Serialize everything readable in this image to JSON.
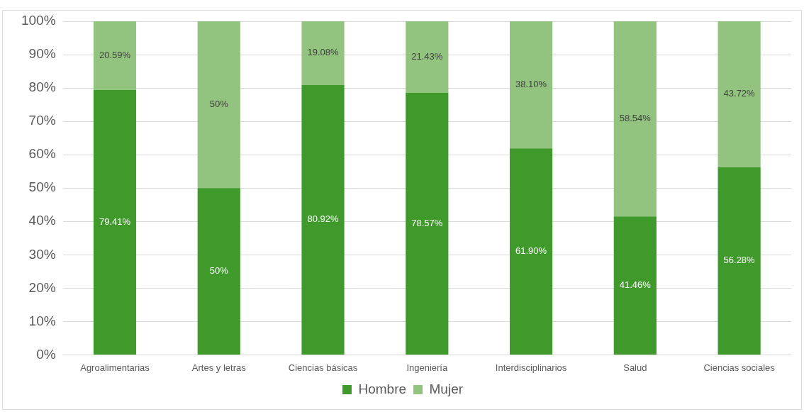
{
  "chart_data": {
    "type": "bar",
    "stacked": true,
    "categories": [
      "Agroalimentarias",
      "Artes y letras",
      "Ciencias básicas",
      "Ingeniería",
      "Interdisciplinarios",
      "Salud",
      "Ciencias sociales"
    ],
    "series": [
      {
        "name": "Hombre",
        "color": "#3f9a2b",
        "values": [
          79.41,
          50,
          80.92,
          78.57,
          61.9,
          41.46,
          56.28
        ],
        "value_labels": [
          "79.41%",
          "50%",
          "80.92%",
          "78.57%",
          "61.90%",
          "41.46%",
          "56.28%"
        ]
      },
      {
        "name": "Mujer",
        "color": "#93c47f",
        "values": [
          20.59,
          50,
          19.08,
          21.43,
          38.1,
          58.54,
          43.72
        ],
        "value_labels": [
          "20.59%",
          "50%",
          "19.08%",
          "21.43%",
          "38.10%",
          "58.54%",
          "43.72%"
        ]
      }
    ],
    "ylim": [
      0,
      100
    ],
    "yticks": [
      {
        "value": 0,
        "label": "0%"
      },
      {
        "value": 10,
        "label": "10%"
      },
      {
        "value": 20,
        "label": "20%"
      },
      {
        "value": 30,
        "label": "30%"
      },
      {
        "value": 40,
        "label": "40%"
      },
      {
        "value": 50,
        "label": "50%"
      },
      {
        "value": 60,
        "label": "60%"
      },
      {
        "value": 70,
        "label": "70%"
      },
      {
        "value": 80,
        "label": "80%"
      },
      {
        "value": 90,
        "label": "90%"
      },
      {
        "value": 100,
        "label": "100%"
      }
    ],
    "grid": "y",
    "legend": "bottom"
  }
}
